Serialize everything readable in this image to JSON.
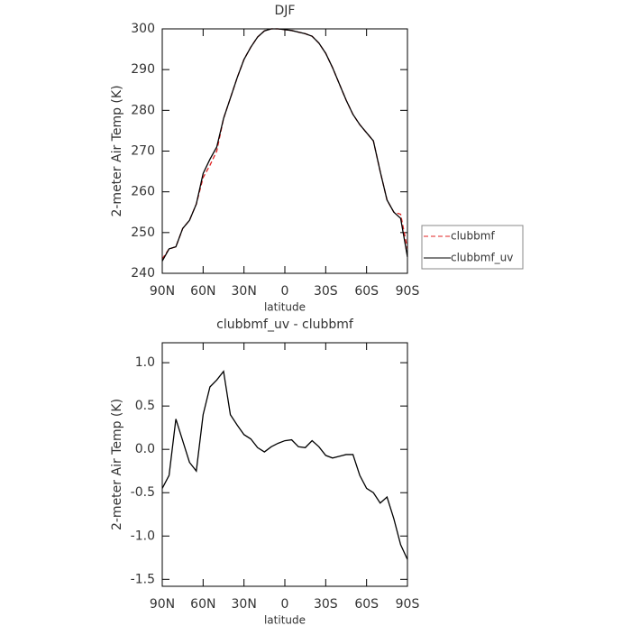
{
  "chart_data": [
    {
      "type": "line",
      "title": "DJF",
      "x_label": "latitude",
      "y_label": "2-meter Air Temp (K)",
      "x": [
        90,
        85,
        80,
        75,
        70,
        65,
        60,
        55,
        50,
        45,
        40,
        35,
        30,
        25,
        20,
        15,
        10,
        5,
        0,
        -5,
        -10,
        -15,
        -20,
        -25,
        -30,
        -35,
        -40,
        -45,
        -50,
        -55,
        -60,
        -65,
        -70,
        -75,
        -80,
        -85,
        -90
      ],
      "xlim": [
        90,
        -90
      ],
      "xticks": [
        {
          "value": 90,
          "label": "90N"
        },
        {
          "value": 60,
          "label": "60N"
        },
        {
          "value": 30,
          "label": "30N"
        },
        0,
        {
          "value": -30,
          "label": "30S"
        },
        {
          "value": -60,
          "label": "60S"
        },
        {
          "value": -90,
          "label": "90S"
        }
      ],
      "ylim": [
        240,
        300
      ],
      "yticks": [
        240,
        250,
        260,
        270,
        280,
        290,
        300
      ],
      "legend": "right",
      "series": [
        {
          "name": "clubbmf",
          "color": "#e02020",
          "line_style": "dashed",
          "values": [
            243.5,
            246,
            246.5,
            251,
            253,
            257,
            263.5,
            266.5,
            270,
            278,
            283,
            288,
            292.5,
            295.5,
            298,
            299.5,
            300,
            300,
            299.8,
            299.6,
            299.2,
            298.8,
            298.2,
            296.5,
            294,
            290.5,
            286.5,
            282.5,
            279,
            276.5,
            274.5,
            272.5,
            265,
            258,
            255,
            254.5,
            246
          ]
        },
        {
          "name": "clubbmf_uv",
          "color": "#000000",
          "line_style": "solid",
          "values": [
            243,
            246,
            246.5,
            251,
            253,
            257,
            264.5,
            268,
            271,
            278,
            283,
            288,
            292.5,
            295.5,
            298,
            299.5,
            300,
            300,
            299.8,
            299.6,
            299.2,
            298.8,
            298.2,
            296.5,
            294,
            290.5,
            286.5,
            282.5,
            279,
            276.5,
            274.5,
            272.5,
            265,
            258,
            255,
            253.5,
            244
          ]
        }
      ]
    },
    {
      "type": "line",
      "title": "clubbmf_uv - clubbmf",
      "x_label": "latitude",
      "y_label": "2-meter Air Temp (K)",
      "x": [
        90,
        85,
        80,
        75,
        70,
        65,
        60,
        55,
        50,
        45,
        40,
        35,
        30,
        25,
        20,
        15,
        10,
        5,
        0,
        -5,
        -10,
        -15,
        -20,
        -25,
        -30,
        -35,
        -40,
        -45,
        -50,
        -55,
        -60,
        -65,
        -70,
        -75,
        -80,
        -85,
        -90
      ],
      "xlim": [
        90,
        -90
      ],
      "xticks": [
        {
          "value": 90,
          "label": "90N"
        },
        {
          "value": 60,
          "label": "60N"
        },
        {
          "value": 30,
          "label": "30N"
        },
        0,
        {
          "value": -30,
          "label": "30S"
        },
        {
          "value": -60,
          "label": "60S"
        },
        {
          "value": -90,
          "label": "90S"
        }
      ],
      "ylim": [
        -1.58,
        1.23
      ],
      "yticks": [
        {
          "value": -1.5,
          "label": "-1.5"
        },
        {
          "value": -1,
          "label": "-1.0"
        },
        -0.5,
        {
          "value": 0,
          "label": "0.0"
        },
        0.5,
        {
          "value": 1,
          "label": "1.0"
        }
      ],
      "series": [
        {
          "color": "#000000",
          "line_style": "solid",
          "values": [
            -0.45,
            -0.3,
            0.35,
            0.1,
            -0.15,
            -0.25,
            0.4,
            0.72,
            0.8,
            0.9,
            0.4,
            0.28,
            0.17,
            0.12,
            0.02,
            -0.03,
            0.03,
            0.07,
            0.1,
            0.11,
            0.03,
            0.02,
            0.1,
            0.03,
            -0.07,
            -0.1,
            -0.08,
            -0.06,
            -0.06,
            -0.3,
            -0.45,
            -0.5,
            -0.62,
            -0.55,
            -0.8,
            -1.1,
            -1.27
          ]
        }
      ]
    }
  ]
}
